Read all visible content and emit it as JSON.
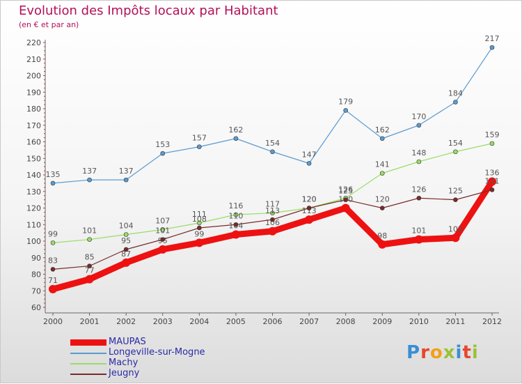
{
  "header": {
    "title": "Evolution des Impôts locaux par Habitant",
    "subtitle": "(en € et par an)"
  },
  "logo": {
    "text": "Proxiti",
    "letter_colors": [
      "#3a8fd4",
      "#e8462c",
      "#f3a017",
      "#9bc13a",
      "#3a8fd4",
      "#e8462c",
      "#9bc13a"
    ]
  },
  "colors": {
    "grid_dash": "#cc3333",
    "axis": "#666666",
    "label": "#444444"
  },
  "chart_data": {
    "type": "line",
    "title": "Evolution des Impôts locaux par Habitant",
    "subtitle": "(en € et par an)",
    "xlabel": "",
    "ylabel": "",
    "x": [
      "2000",
      "2001",
      "2002",
      "2003",
      "2004",
      "2005",
      "2006",
      "2007",
      "2008",
      "2009",
      "2010",
      "2011",
      "2012"
    ],
    "ylim": [
      60,
      220
    ],
    "yticks": [
      60,
      70,
      80,
      90,
      100,
      110,
      120,
      130,
      140,
      150,
      160,
      170,
      180,
      190,
      200,
      210,
      220
    ],
    "grid": false,
    "legend_position": "bottom-left",
    "series": [
      {
        "name": "MAUPAS",
        "color": "#ee1111",
        "values": [
          71,
          77,
          87,
          95,
          99,
          104,
          106,
          113,
          120,
          98,
          101,
          102,
          136
        ]
      },
      {
        "name": "Longeville-sur-Mogne",
        "color": "#5b9bd0",
        "values": [
          135,
          137,
          137,
          153,
          157,
          162,
          154,
          147,
          179,
          162,
          170,
          184,
          217
        ]
      },
      {
        "name": "Machy",
        "color": "#99dd66",
        "values": [
          99,
          101,
          104,
          107,
          111,
          116,
          117,
          120,
          126,
          141,
          148,
          154,
          159
        ]
      },
      {
        "name": "Jeugny",
        "color": "#7a2a2a",
        "values": [
          83,
          85,
          95,
          101,
          108,
          110,
          113,
          120,
          125,
          120,
          126,
          125,
          131
        ]
      }
    ]
  }
}
